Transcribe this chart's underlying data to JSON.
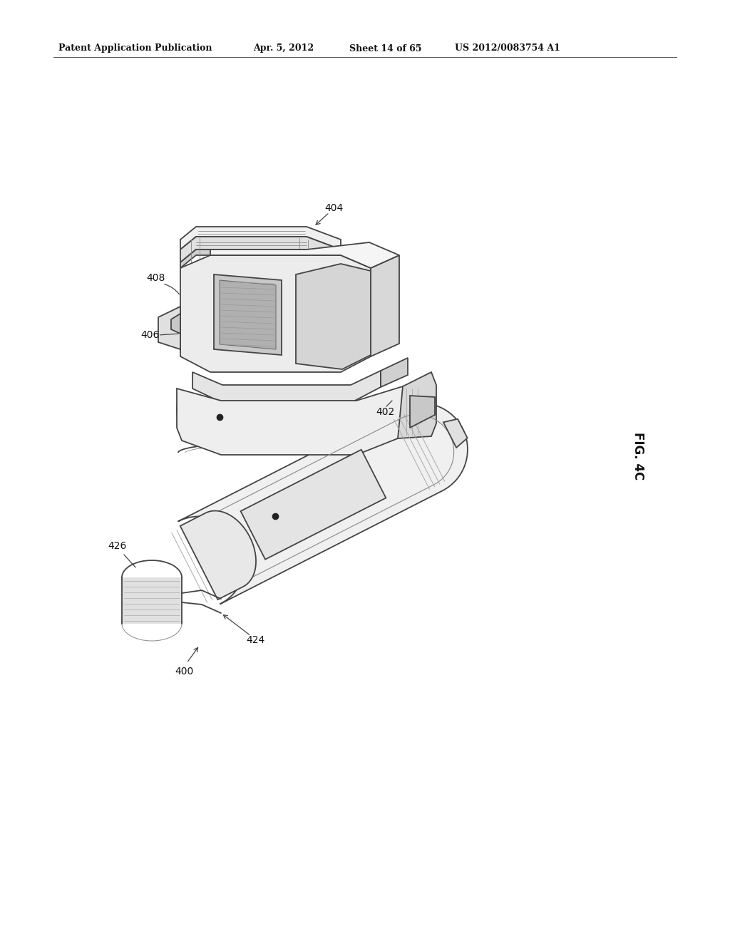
{
  "header_left": "Patent Application Publication",
  "header_mid": "Apr. 5, 2012",
  "header_sheet": "Sheet 14 of 65",
  "header_right": "US 2012/0083754 A1",
  "fig_label": "FIG. 4C",
  "background_color": "#ffffff",
  "line_color": "#444444",
  "gray_fill": "#c8c8c8",
  "light_gray": "#e8e8e8",
  "medium_gray": "#b0b0b0"
}
